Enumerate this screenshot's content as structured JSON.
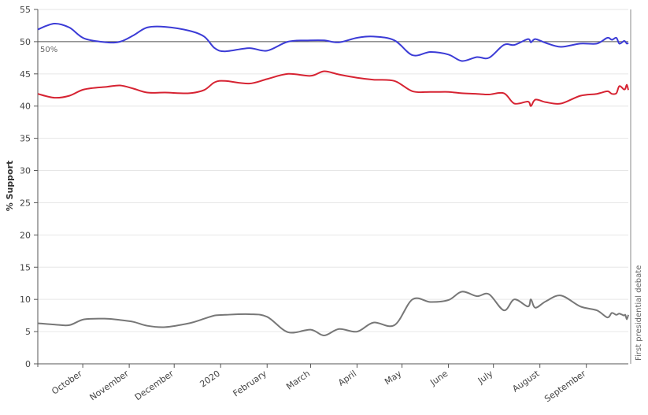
{
  "chart_data": {
    "type": "line",
    "title": "",
    "xlabel": "",
    "ylabel": "% Support",
    "ylim": [
      0,
      55
    ],
    "xlim": [
      "2019-09-01",
      "2020-09-29"
    ],
    "grid": true,
    "yticks": [
      0,
      5,
      10,
      15,
      20,
      25,
      30,
      35,
      40,
      45,
      50,
      55
    ],
    "xticks": [
      {
        "date": "2019-10-01",
        "label": "October"
      },
      {
        "date": "2019-11-01",
        "label": "November"
      },
      {
        "date": "2019-12-01",
        "label": "December"
      },
      {
        "date": "2020-01-01",
        "label": "2020"
      },
      {
        "date": "2020-02-01",
        "label": "February"
      },
      {
        "date": "2020-03-01",
        "label": "March"
      },
      {
        "date": "2020-04-01",
        "label": "April"
      },
      {
        "date": "2020-05-01",
        "label": "May"
      },
      {
        "date": "2020-06-01",
        "label": "June"
      },
      {
        "date": "2020-07-01",
        "label": "July"
      },
      {
        "date": "2020-08-01",
        "label": "August"
      },
      {
        "date": "2020-09-01",
        "label": "September"
      }
    ],
    "reference_line": {
      "value": 50,
      "label": "50%"
    },
    "vertical_marker": {
      "date": "2020-09-29",
      "label": "First presidential debate"
    },
    "series": [
      {
        "color": "#3b3bd6",
        "points": [
          [
            "2019-09-01",
            51.9
          ],
          [
            "2019-09-12",
            52.8
          ],
          [
            "2019-09-22",
            52.2
          ],
          [
            "2019-10-02",
            50.5
          ],
          [
            "2019-10-17",
            49.9
          ],
          [
            "2019-10-26",
            50.0
          ],
          [
            "2019-11-04",
            51.0
          ],
          [
            "2019-11-13",
            52.2
          ],
          [
            "2019-11-25",
            52.3
          ],
          [
            "2019-12-11",
            51.7
          ],
          [
            "2019-12-21",
            50.8
          ],
          [
            "2019-12-28",
            49.0
          ],
          [
            "2020-01-04",
            48.5
          ],
          [
            "2020-01-20",
            49.0
          ],
          [
            "2020-02-01",
            48.6
          ],
          [
            "2020-02-15",
            50.0
          ],
          [
            "2020-03-01",
            50.2
          ],
          [
            "2020-03-10",
            50.2
          ],
          [
            "2020-03-20",
            49.9
          ],
          [
            "2020-04-01",
            50.6
          ],
          [
            "2020-04-12",
            50.8
          ],
          [
            "2020-04-26",
            50.2
          ],
          [
            "2020-05-08",
            47.9
          ],
          [
            "2020-05-20",
            48.4
          ],
          [
            "2020-06-01",
            48.0
          ],
          [
            "2020-06-10",
            47.0
          ],
          [
            "2020-06-20",
            47.6
          ],
          [
            "2020-06-28",
            47.5
          ],
          [
            "2020-07-08",
            49.5
          ],
          [
            "2020-07-15",
            49.5
          ],
          [
            "2020-07-24",
            50.4
          ],
          [
            "2020-07-26",
            49.9
          ],
          [
            "2020-07-29",
            50.4
          ],
          [
            "2020-08-05",
            49.8
          ],
          [
            "2020-08-15",
            49.2
          ],
          [
            "2020-08-28",
            49.7
          ],
          [
            "2020-09-08",
            49.7
          ],
          [
            "2020-09-15",
            50.6
          ],
          [
            "2020-09-18",
            50.3
          ],
          [
            "2020-09-21",
            50.6
          ],
          [
            "2020-09-23",
            49.7
          ],
          [
            "2020-09-26",
            50.1
          ],
          [
            "2020-09-27",
            50.0
          ],
          [
            "2020-09-28",
            49.7
          ],
          [
            "2020-09-29",
            49.8
          ]
        ]
      },
      {
        "color": "#d62332",
        "points": [
          [
            "2019-09-01",
            41.9
          ],
          [
            "2019-09-12",
            41.3
          ],
          [
            "2019-09-22",
            41.6
          ],
          [
            "2019-10-02",
            42.6
          ],
          [
            "2019-10-17",
            43.0
          ],
          [
            "2019-10-26",
            43.2
          ],
          [
            "2019-11-04",
            42.7
          ],
          [
            "2019-11-13",
            42.1
          ],
          [
            "2019-11-25",
            42.1
          ],
          [
            "2019-12-11",
            42.0
          ],
          [
            "2019-12-21",
            42.5
          ],
          [
            "2019-12-28",
            43.7
          ],
          [
            "2020-01-04",
            43.9
          ],
          [
            "2020-01-20",
            43.5
          ],
          [
            "2020-02-01",
            44.2
          ],
          [
            "2020-02-15",
            45.0
          ],
          [
            "2020-03-01",
            44.7
          ],
          [
            "2020-03-10",
            45.4
          ],
          [
            "2020-03-20",
            44.9
          ],
          [
            "2020-04-01",
            44.4
          ],
          [
            "2020-04-12",
            44.1
          ],
          [
            "2020-04-26",
            43.9
          ],
          [
            "2020-05-08",
            42.3
          ],
          [
            "2020-05-20",
            42.2
          ],
          [
            "2020-06-01",
            42.2
          ],
          [
            "2020-06-10",
            42.0
          ],
          [
            "2020-06-20",
            41.9
          ],
          [
            "2020-06-28",
            41.8
          ],
          [
            "2020-07-08",
            42.0
          ],
          [
            "2020-07-15",
            40.4
          ],
          [
            "2020-07-24",
            40.7
          ],
          [
            "2020-07-26",
            40.0
          ],
          [
            "2020-07-29",
            41.0
          ],
          [
            "2020-08-05",
            40.6
          ],
          [
            "2020-08-15",
            40.4
          ],
          [
            "2020-08-28",
            41.6
          ],
          [
            "2020-09-08",
            41.9
          ],
          [
            "2020-09-15",
            42.3
          ],
          [
            "2020-09-18",
            41.9
          ],
          [
            "2020-09-21",
            42.0
          ],
          [
            "2020-09-23",
            43.1
          ],
          [
            "2020-09-26",
            42.6
          ],
          [
            "2020-09-27",
            42.7
          ],
          [
            "2020-09-28",
            43.3
          ],
          [
            "2020-09-29",
            42.5
          ]
        ]
      },
      {
        "color": "#777777",
        "points": [
          [
            "2019-09-01",
            6.3
          ],
          [
            "2019-09-12",
            6.1
          ],
          [
            "2019-09-22",
            6.0
          ],
          [
            "2019-10-02",
            6.9
          ],
          [
            "2019-10-17",
            7.0
          ],
          [
            "2019-10-26",
            6.8
          ],
          [
            "2019-11-04",
            6.5
          ],
          [
            "2019-11-13",
            5.9
          ],
          [
            "2019-11-25",
            5.7
          ],
          [
            "2019-12-11",
            6.3
          ],
          [
            "2019-12-21",
            7.0
          ],
          [
            "2019-12-28",
            7.5
          ],
          [
            "2020-01-04",
            7.6
          ],
          [
            "2020-01-20",
            7.7
          ],
          [
            "2020-02-01",
            7.3
          ],
          [
            "2020-02-15",
            4.9
          ],
          [
            "2020-03-01",
            5.3
          ],
          [
            "2020-03-10",
            4.4
          ],
          [
            "2020-03-20",
            5.4
          ],
          [
            "2020-04-01",
            5.0
          ],
          [
            "2020-04-12",
            6.4
          ],
          [
            "2020-04-26",
            6.0
          ],
          [
            "2020-05-08",
            10.0
          ],
          [
            "2020-05-20",
            9.6
          ],
          [
            "2020-06-01",
            9.9
          ],
          [
            "2020-06-10",
            11.2
          ],
          [
            "2020-06-20",
            10.5
          ],
          [
            "2020-06-28",
            10.8
          ],
          [
            "2020-07-08",
            8.3
          ],
          [
            "2020-07-15",
            10.0
          ],
          [
            "2020-07-24",
            8.9
          ],
          [
            "2020-07-26",
            10.0
          ],
          [
            "2020-07-29",
            8.7
          ],
          [
            "2020-08-05",
            9.7
          ],
          [
            "2020-08-15",
            10.6
          ],
          [
            "2020-08-28",
            8.9
          ],
          [
            "2020-09-08",
            8.3
          ],
          [
            "2020-09-15",
            7.2
          ],
          [
            "2020-09-18",
            7.9
          ],
          [
            "2020-09-21",
            7.6
          ],
          [
            "2020-09-23",
            7.8
          ],
          [
            "2020-09-26",
            7.5
          ],
          [
            "2020-09-27",
            7.6
          ],
          [
            "2020-09-28",
            6.9
          ],
          [
            "2020-09-29",
            7.6
          ]
        ]
      }
    ]
  }
}
